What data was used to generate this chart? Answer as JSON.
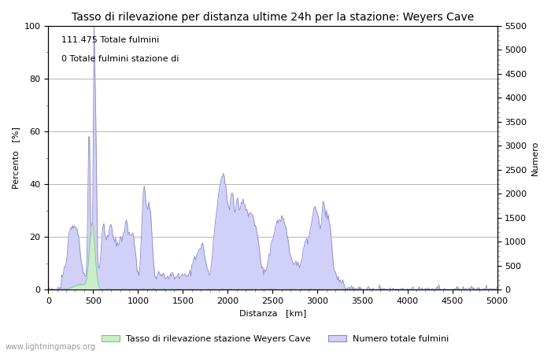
{
  "title": "Tasso di rilevazione per distanza ultime 24h per la stazione: Weyers Cave",
  "xlabel": "Distanza   [km]",
  "ylabel_left": "Percento   [%]",
  "ylabel_right": "Numero",
  "xlim": [
    0,
    5000
  ],
  "ylim_left": [
    0,
    100
  ],
  "ylim_right": [
    0,
    5500
  ],
  "xticks": [
    0,
    500,
    1000,
    1500,
    2000,
    2500,
    3000,
    3500,
    4000,
    4500,
    5000
  ],
  "yticks_left": [
    0,
    20,
    40,
    60,
    80,
    100
  ],
  "yticks_right": [
    0,
    500,
    1000,
    1500,
    2000,
    2500,
    3000,
    3500,
    4000,
    4500,
    5000,
    5500
  ],
  "annotation1": "111.475 Totale fulmini",
  "annotation2": "0 Totale fulmini stazione di",
  "legend_label1": "Tasso di rilevazione stazione Weyers Cave",
  "legend_label2": "Numero totale fulmini",
  "fill_color_blue": "#d0d0f8",
  "fill_color_green": "#c8f0c8",
  "line_color_blue": "#8888cc",
  "line_color_green": "#88bb88",
  "watermark": "www.lightningmaps.org",
  "bg_color": "#ffffff",
  "grid_color": "#aaaaaa",
  "title_fontsize": 10,
  "label_fontsize": 8,
  "tick_fontsize": 8,
  "annot_fontsize": 8
}
